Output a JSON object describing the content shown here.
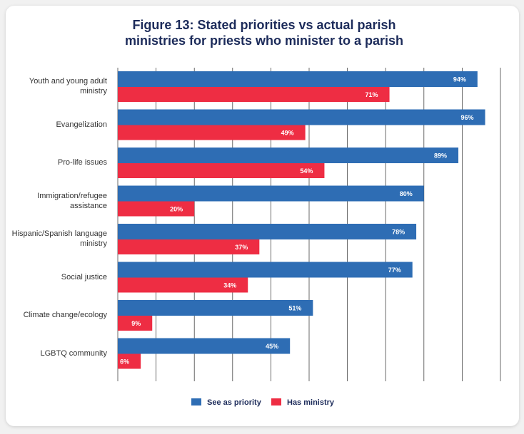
{
  "chart_data": {
    "type": "bar",
    "orientation": "horizontal",
    "title": "Figure 13: Stated priorities vs actual parish ministries for priests who minister to a parish",
    "categories": [
      "Youth and young adult ministry",
      "Evangelization",
      "Pro-life issues",
      "Immigration/refugee assistance",
      "Hispanic/Spanish language ministry",
      "Social justice",
      "Climate change/ecology",
      "LGBTQ community"
    ],
    "series": [
      {
        "name": "See as priority",
        "color": "#2e6db4",
        "values": [
          94,
          96,
          89,
          80,
          78,
          77,
          51,
          45
        ],
        "value_labels": [
          "94%",
          "96%",
          "89%",
          "80%",
          "78%",
          "77%",
          "51%",
          "45%"
        ]
      },
      {
        "name": "Has ministry",
        "color": "#ee2d43",
        "values": [
          71,
          49,
          54,
          20,
          37,
          34,
          9,
          6
        ],
        "value_labels": [
          "71%",
          "49%",
          "54%",
          "20%",
          "37%",
          "34%",
          "9%",
          "6%"
        ]
      }
    ],
    "xlim": [
      0,
      100
    ],
    "xticks": [
      0,
      10,
      20,
      30,
      40,
      50,
      60,
      70,
      80,
      90,
      100
    ],
    "grid": true
  }
}
